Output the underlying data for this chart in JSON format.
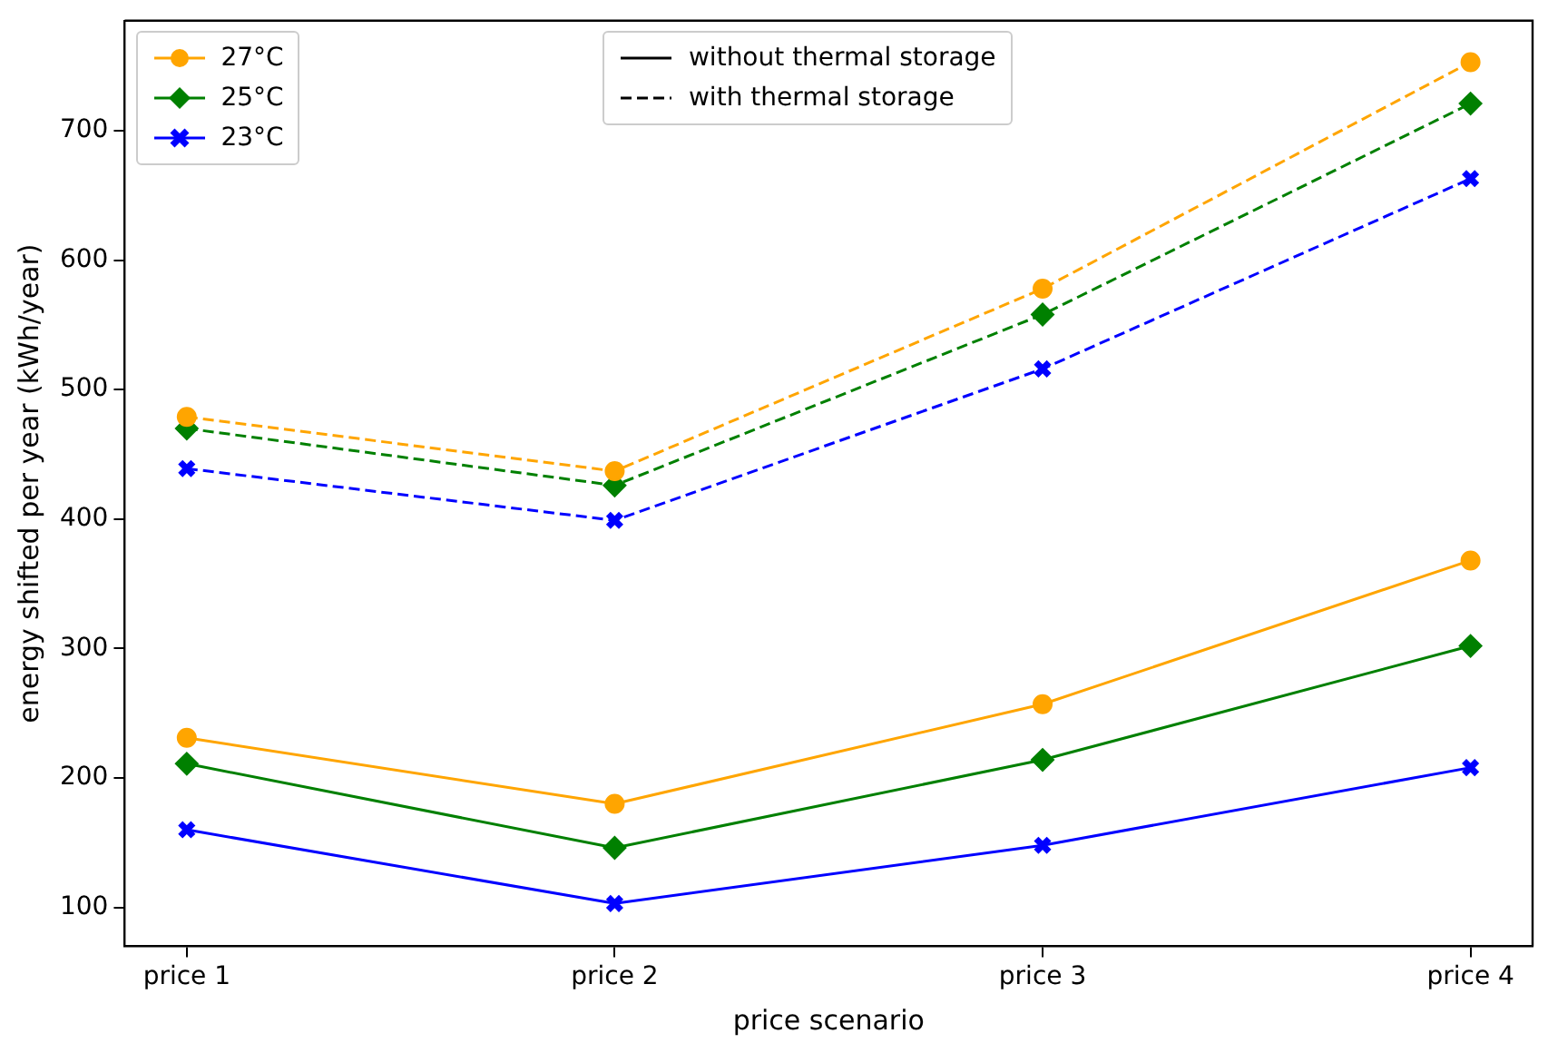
{
  "chart_data": {
    "type": "line",
    "xlabel": "price scenario",
    "ylabel": "energy shifted per year (kWh/year)",
    "categories": [
      "price 1",
      "price 2",
      "price 3",
      "price 4"
    ],
    "ylim": [
      70,
      785
    ],
    "yticks": [
      100,
      200,
      300,
      400,
      500,
      600,
      700
    ],
    "grid": false,
    "legend": "top left",
    "annotations": [
      "without thermal storage",
      "with thermal storage"
    ],
    "series": [
      {
        "name": "27°C",
        "color": "#ffa500",
        "marker": "circle",
        "line_style": "solid",
        "values": [
          231,
          180,
          257,
          368
        ]
      },
      {
        "name": "25°C",
        "color": "#008000",
        "marker": "diamond",
        "line_style": "solid",
        "values": [
          211,
          146,
          214,
          302
        ]
      },
      {
        "name": "23°C",
        "color": "#0000ff",
        "marker": "cross",
        "line_style": "solid",
        "values": [
          160,
          103,
          148,
          208
        ]
      },
      {
        "color": "#ffa500",
        "marker": "circle",
        "line_style": "dashed",
        "values": [
          479,
          437,
          578,
          753
        ]
      },
      {
        "color": "#008000",
        "marker": "diamond",
        "line_style": "dashed",
        "values": [
          470,
          426,
          558,
          721
        ]
      },
      {
        "color": "#0000ff",
        "marker": "cross",
        "line_style": "dashed",
        "values": [
          439,
          399,
          516,
          663
        ]
      }
    ]
  }
}
